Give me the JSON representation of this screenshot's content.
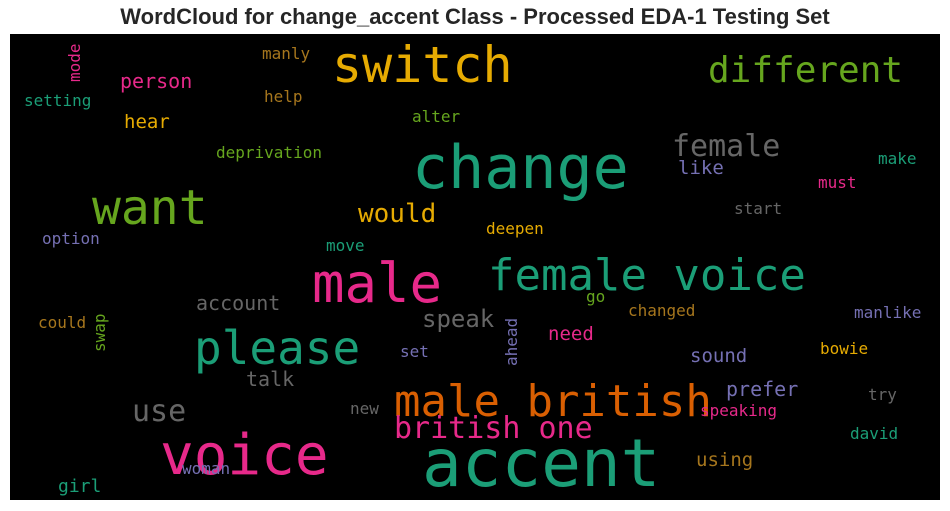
{
  "chart_data": {
    "type": "wordcloud",
    "title": "WordCloud for change_accent Class - Processed EDA-1 Testing Set",
    "background": "#000000",
    "palette": "Dark2",
    "words": [
      {
        "text": "accent",
        "color": "#1b9e77"
      },
      {
        "text": "change",
        "color": "#1b9e77"
      },
      {
        "text": "voice",
        "color": "#e7298a"
      },
      {
        "text": "male",
        "color": "#e7298a"
      },
      {
        "text": "female voice",
        "color": "#1b9e77"
      },
      {
        "text": "male british",
        "color": "#d95f02"
      },
      {
        "text": "want",
        "color": "#66a61e"
      },
      {
        "text": "switch",
        "color": "#e6ab02"
      },
      {
        "text": "please",
        "color": "#1b9e77"
      },
      {
        "text": "different",
        "color": "#66a61e"
      },
      {
        "text": "british one",
        "color": "#e7298a"
      },
      {
        "text": "female",
        "color": "#666666"
      },
      {
        "text": "use",
        "color": "#666666"
      },
      {
        "text": "would",
        "color": "#e6ab02"
      },
      {
        "text": "speak",
        "color": "#666666"
      },
      {
        "text": "account",
        "color": "#666666"
      },
      {
        "text": "talk",
        "color": "#666666"
      },
      {
        "text": "person",
        "color": "#e7298a"
      },
      {
        "text": "prefer",
        "color": "#7570b3"
      },
      {
        "text": "sound",
        "color": "#7570b3"
      },
      {
        "text": "like",
        "color": "#7570b3"
      },
      {
        "text": "need",
        "color": "#e7298a"
      },
      {
        "text": "hear",
        "color": "#e6ab02"
      },
      {
        "text": "using",
        "color": "#a6761d"
      },
      {
        "text": "girl",
        "color": "#1b9e77"
      },
      {
        "text": "changed",
        "color": "#a6761d"
      },
      {
        "text": "deprivation",
        "color": "#66a61e"
      },
      {
        "text": "speaking",
        "color": "#e7298a"
      },
      {
        "text": "deepen",
        "color": "#e6ab02"
      },
      {
        "text": "must",
        "color": "#e7298a"
      },
      {
        "text": "manlike",
        "color": "#7570b3"
      },
      {
        "text": "bowie",
        "color": "#e6ab02"
      },
      {
        "text": "option",
        "color": "#7570b3"
      },
      {
        "text": "could",
        "color": "#a6761d"
      },
      {
        "text": "make",
        "color": "#1b9e77"
      },
      {
        "text": "start",
        "color": "#666666"
      },
      {
        "text": "setting",
        "color": "#1b9e77"
      },
      {
        "text": "manly",
        "color": "#a6761d"
      },
      {
        "text": "help",
        "color": "#a6761d"
      },
      {
        "text": "alter",
        "color": "#66a61e"
      },
      {
        "text": "move",
        "color": "#1b9e77"
      },
      {
        "text": "woman",
        "color": "#7570b3"
      },
      {
        "text": "try",
        "color": "#666666"
      },
      {
        "text": "david",
        "color": "#1b9e77"
      },
      {
        "text": "set",
        "color": "#7570b3"
      },
      {
        "text": "new",
        "color": "#666666"
      },
      {
        "text": "go",
        "color": "#66a61e"
      },
      {
        "text": "mode",
        "color": "#e7298a"
      },
      {
        "text": "swap",
        "color": "#66a61e"
      },
      {
        "text": "ahead",
        "color": "#7570b3"
      }
    ]
  }
}
